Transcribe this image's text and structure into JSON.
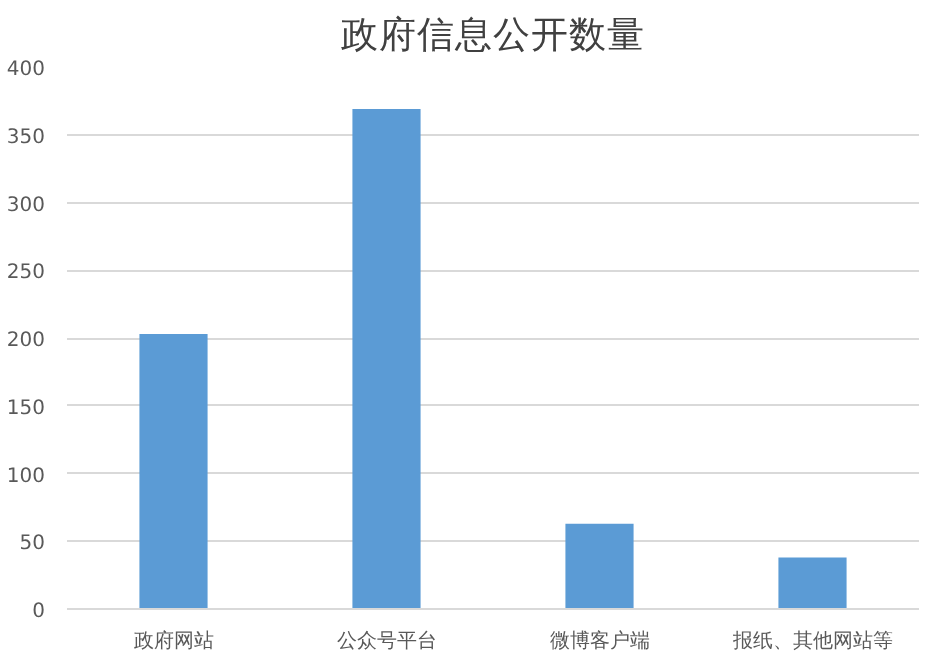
{
  "chart_data": {
    "type": "bar",
    "title": "政府信息公开数量",
    "categories": [
      "政府网站",
      "公众号平台",
      "微博客户端",
      "报纸、其他网站等"
    ],
    "values": [
      203,
      369,
      63,
      38
    ],
    "color": "#5b9bd5",
    "ylim": [
      0,
      400
    ],
    "yticks": [
      0,
      50,
      100,
      150,
      200,
      250,
      300,
      350,
      400
    ],
    "grid": "y"
  }
}
